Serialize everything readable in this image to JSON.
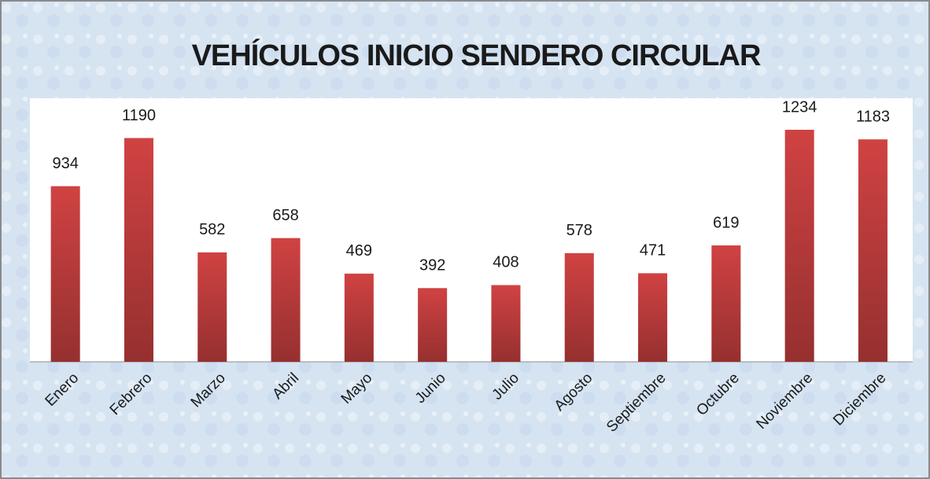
{
  "chart_data": {
    "type": "bar",
    "title": "VEHÍCULOS INICIO SENDERO CIRCULAR",
    "categories": [
      "Enero",
      "Febrero",
      "Marzo",
      "Abril",
      "Mayo",
      "Junio",
      "Julio",
      "Agosto",
      "Septiembre",
      "Octubre",
      "Noviembre",
      "Diciembre"
    ],
    "values": [
      934,
      1190,
      582,
      658,
      469,
      392,
      408,
      578,
      471,
      619,
      1234,
      1183
    ],
    "color": "#d04242"
  }
}
